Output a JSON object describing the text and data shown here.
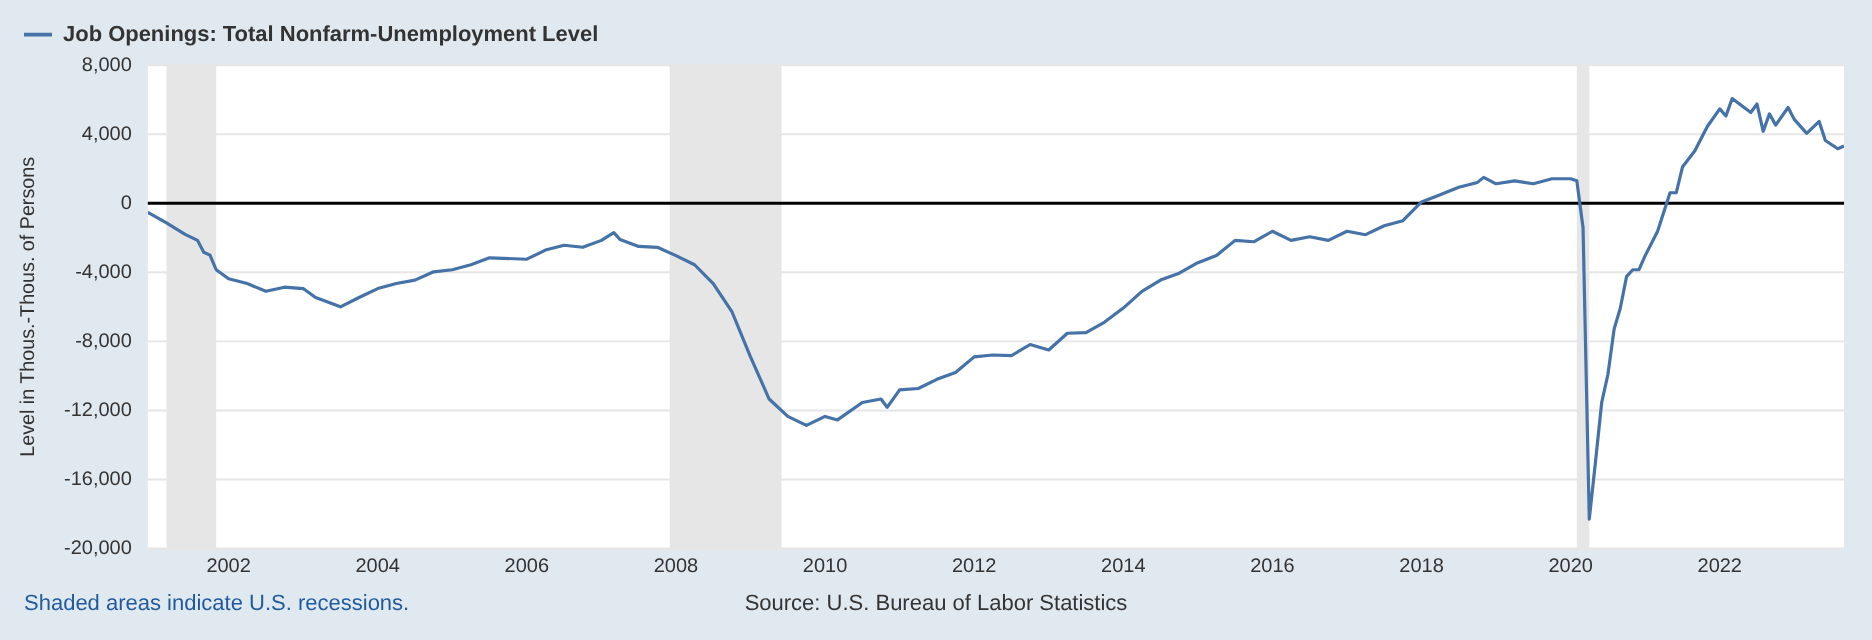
{
  "chart_data": {
    "type": "line",
    "xlabel": null,
    "ylabel": "Level in Thous.-Thous. of Persons",
    "annotations": [
      "Shaded areas indicate U.S. recessions.",
      "Source: U.S. Bureau of Labor Statistics"
    ],
    "x": [
      "2000-12",
      "2001-03",
      "2001-06",
      "2001-08",
      "2001-09",
      "2001-10",
      "2001-11",
      "2002-01",
      "2002-04",
      "2002-07",
      "2002-10",
      "2003-01",
      "2003-03",
      "2003-07",
      "2003-10",
      "2004-01",
      "2004-04",
      "2004-07",
      "2004-10",
      "2005-01",
      "2005-04",
      "2005-07",
      "2006-01",
      "2006-04",
      "2006-07",
      "2006-10",
      "2007-01",
      "2007-03",
      "2007-04",
      "2007-07",
      "2007-10",
      "2008-01",
      "2008-04",
      "2008-07",
      "2008-10",
      "2009-01",
      "2009-04",
      "2009-07",
      "2009-10",
      "2010-01",
      "2010-03",
      "2010-07",
      "2010-10",
      "2010-11",
      "2011-01",
      "2011-04",
      "2011-07",
      "2011-10",
      "2012-01",
      "2012-04",
      "2012-07",
      "2012-10",
      "2013-01",
      "2013-04",
      "2013-07",
      "2013-10",
      "2014-01",
      "2014-04",
      "2014-07",
      "2014-10",
      "2015-01",
      "2015-04",
      "2015-07",
      "2015-10",
      "2016-01",
      "2016-04",
      "2016-07",
      "2016-10",
      "2017-01",
      "2017-04",
      "2017-07",
      "2017-10",
      "2018-01",
      "2018-04",
      "2018-07",
      "2018-10",
      "2018-11",
      "2019-01",
      "2019-04",
      "2019-07",
      "2019-10",
      "2020-01",
      "2020-02",
      "2020-03",
      "2020-04",
      "2020-05",
      "2020-06",
      "2020-07",
      "2020-08",
      "2020-09",
      "2020-10",
      "2020-11",
      "2020-12",
      "2021-01",
      "2021-03",
      "2021-05",
      "2021-06",
      "2021-07",
      "2021-09",
      "2021-11",
      "2022-01",
      "2022-02",
      "2022-03",
      "2022-06",
      "2022-07",
      "2022-08",
      "2022-09",
      "2022-10",
      "2022-12",
      "2023-01",
      "2023-03",
      "2023-05",
      "2023-06",
      "2023-08",
      "2023-09"
    ],
    "series": [
      {
        "name": "Job Openings: Total Nonfarm-Unemployment Level",
        "color": "#4572a7",
        "values": [
          -520,
          -1130,
          -1800,
          -2150,
          -2840,
          -3000,
          -3850,
          -4370,
          -4650,
          -5100,
          -4860,
          -4940,
          -5460,
          -6000,
          -5460,
          -4940,
          -4650,
          -4450,
          -3970,
          -3850,
          -3560,
          -3160,
          -3240,
          -2710,
          -2430,
          -2550,
          -2150,
          -1700,
          -2100,
          -2500,
          -2550,
          -3030,
          -3560,
          -4650,
          -6270,
          -8900,
          -11340,
          -12350,
          -12870,
          -12350,
          -12550,
          -11540,
          -11340,
          -11820,
          -10810,
          -10730,
          -10200,
          -9800,
          -8900,
          -8790,
          -8830,
          -8180,
          -8500,
          -7530,
          -7490,
          -6880,
          -6070,
          -5100,
          -4450,
          -4050,
          -3440,
          -3030,
          -2150,
          -2230,
          -1620,
          -2150,
          -1940,
          -2150,
          -1620,
          -1820,
          -1300,
          -1010,
          80,
          490,
          930,
          1210,
          1500,
          1130,
          1300,
          1130,
          1420,
          1420,
          1300,
          -1420,
          -18300,
          -14980,
          -11540,
          -9920,
          -7290,
          -6070,
          -4250,
          -3850,
          -3850,
          -3030,
          -1620,
          610,
          610,
          2100,
          3040,
          4450,
          5470,
          5060,
          6070,
          5260,
          5750,
          4170,
          5180,
          4530,
          5550,
          4860,
          4050,
          4740,
          3640,
          3160,
          3320
        ]
      }
    ],
    "xlim": [
      "2000-12",
      "2023-09"
    ],
    "xticks": [
      "2002",
      "2004",
      "2006",
      "2008",
      "2010",
      "2012",
      "2014",
      "2016",
      "2018",
      "2020",
      "2022"
    ],
    "ylim": [
      -20000,
      8000
    ],
    "yticks": [
      {
        "value": -20000,
        "label": "-20,000"
      },
      {
        "value": -16000,
        "label": "-16,000"
      },
      {
        "value": -12000,
        "label": "-12,000"
      },
      {
        "value": -8000,
        "label": "-8,000"
      },
      {
        "value": -4000,
        "label": "-4,000"
      },
      {
        "value": 0,
        "label": "0"
      },
      {
        "value": 4000,
        "label": "4,000"
      },
      {
        "value": 8000,
        "label": "8,000"
      }
    ],
    "ref_lines": [
      {
        "axis": "y",
        "value": 0,
        "color": "#000000"
      }
    ],
    "bands": [
      {
        "axis": "x",
        "from": "2001-03",
        "to": "2001-11",
        "color": "#e6e6e6"
      },
      {
        "axis": "x",
        "from": "2007-12",
        "to": "2009-06",
        "color": "#e6e6e6"
      },
      {
        "axis": "x",
        "from": "2020-02",
        "to": "2020-04",
        "color": "#e6e6e6"
      }
    ],
    "grid": "y",
    "legend": "top left",
    "marker": "none",
    "line_style": "solid"
  }
}
